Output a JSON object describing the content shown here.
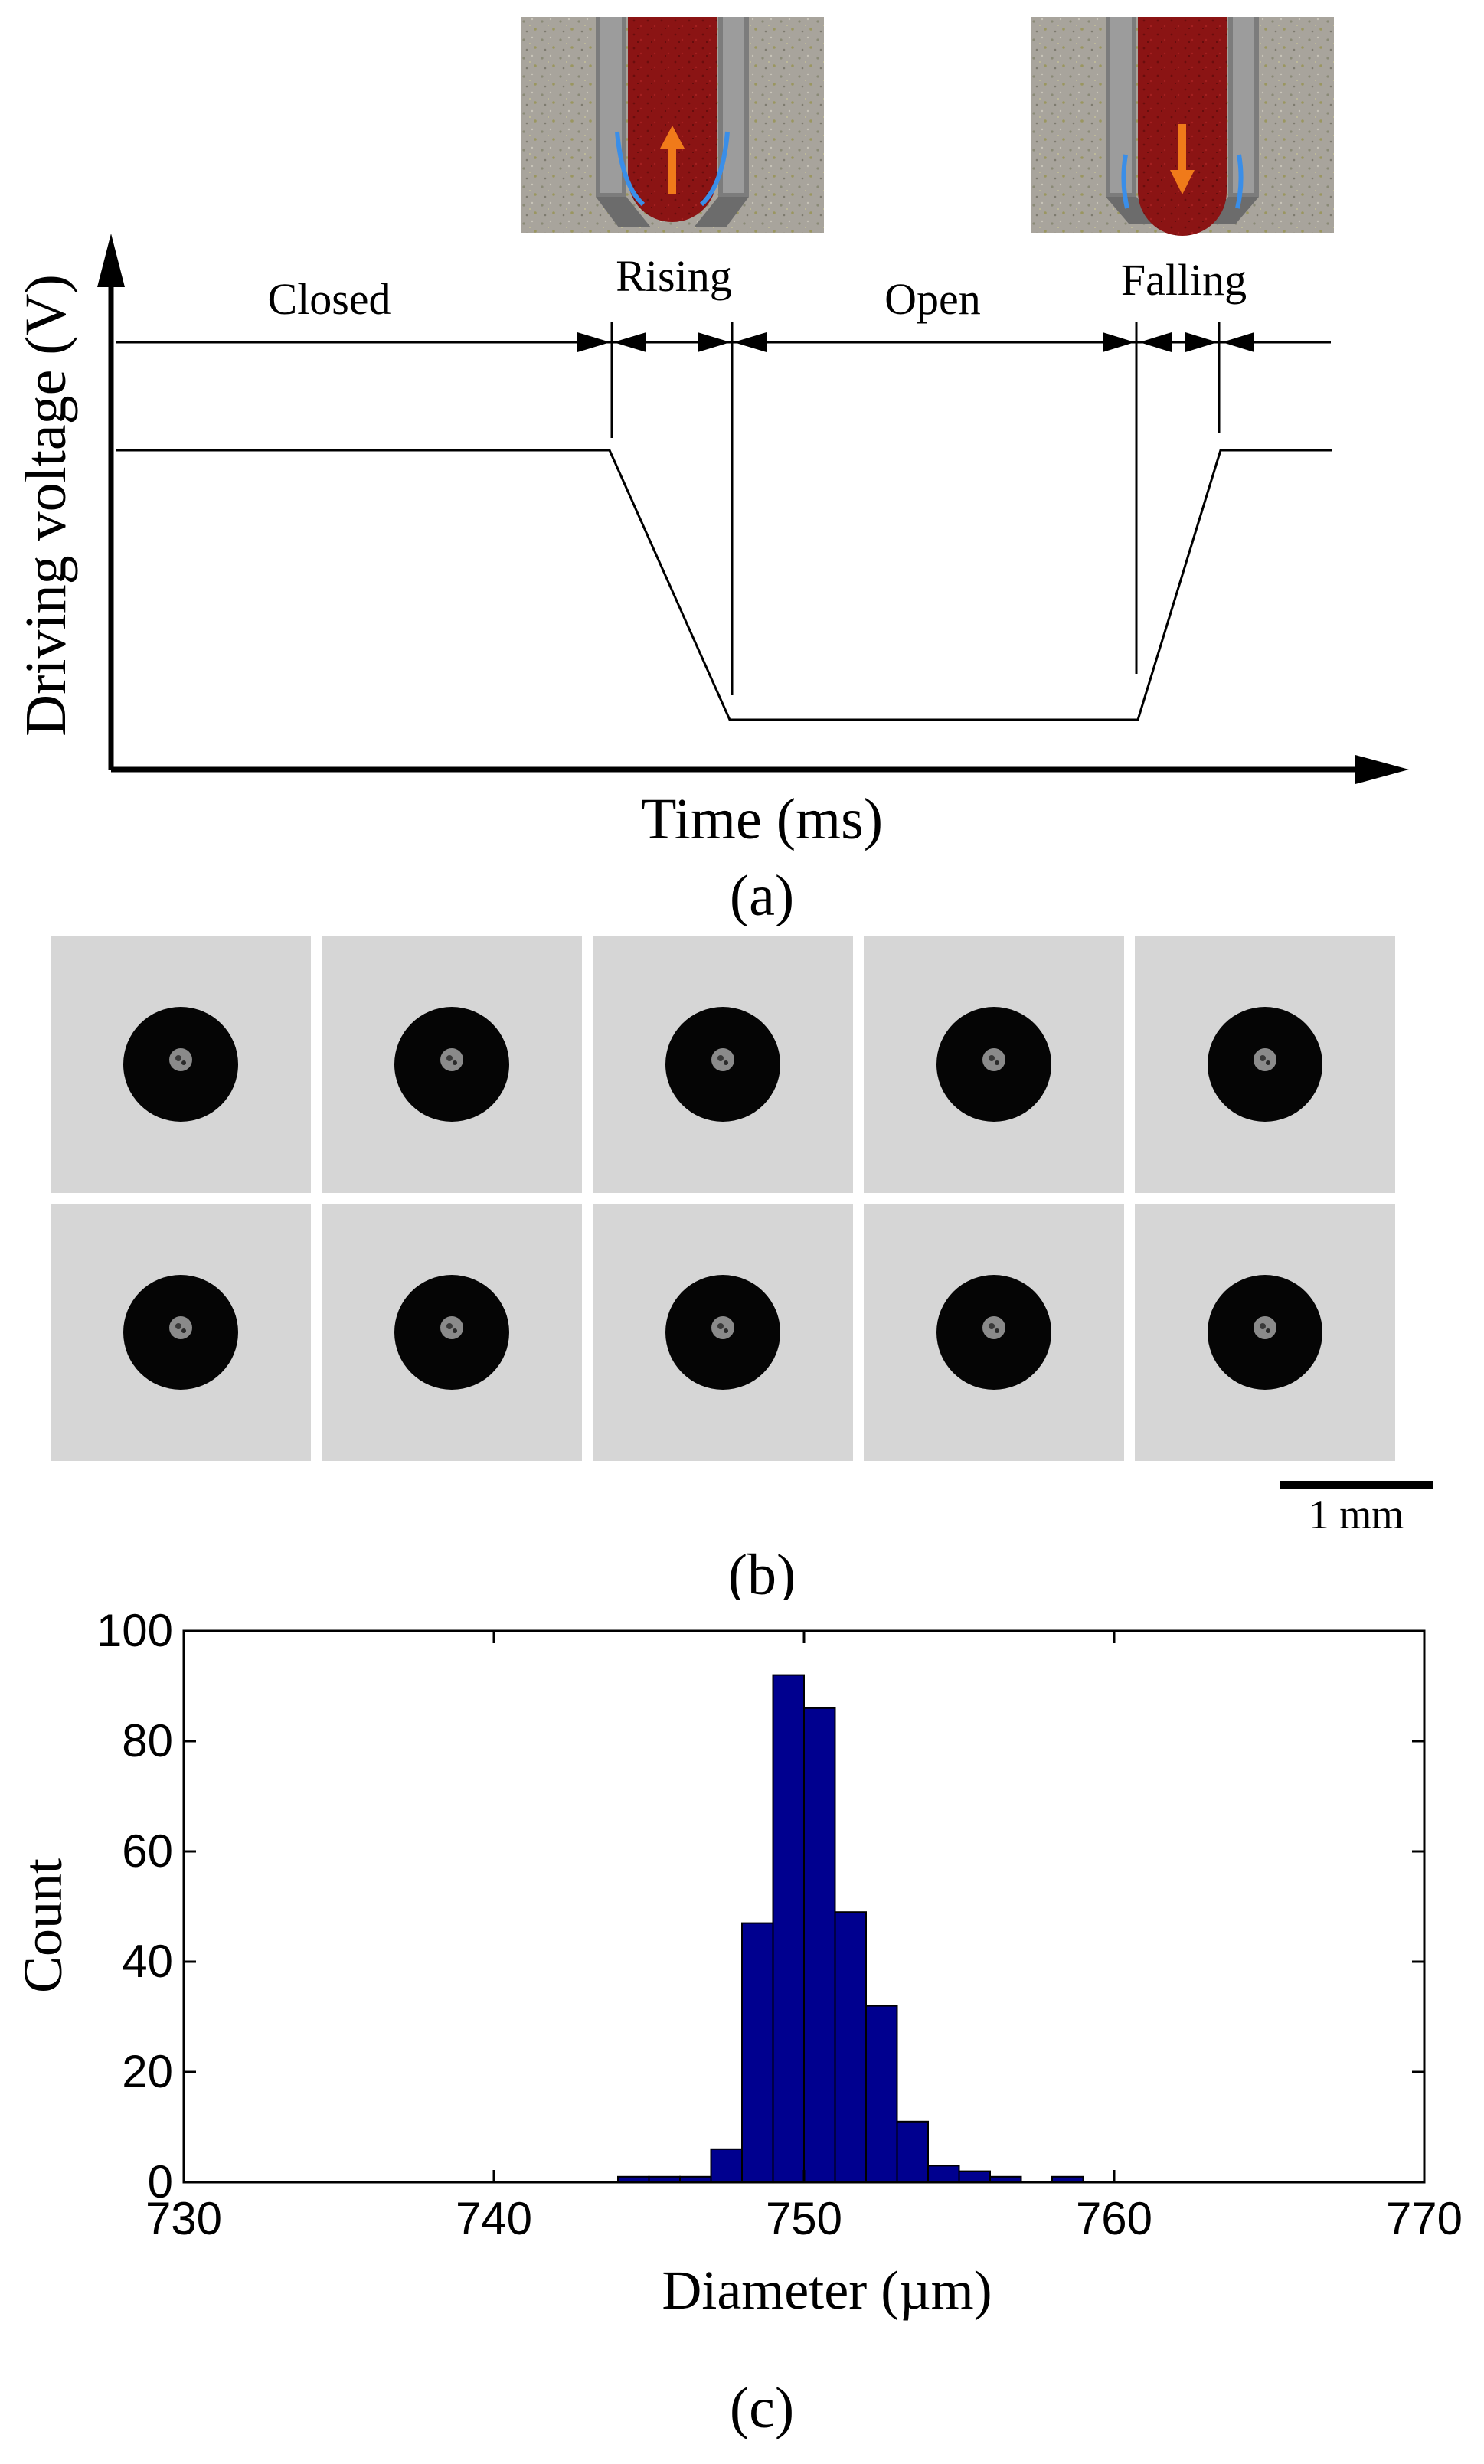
{
  "panel_a": {
    "ylabel": "Driving voltage (V)",
    "xlabel": "Time (ms)",
    "caption": "(a)",
    "phases": [
      "Closed",
      "Rising",
      "Open",
      "Falling"
    ],
    "insets": [
      {
        "name": "rising-inset",
        "arrow": "up"
      },
      {
        "name": "falling-inset",
        "arrow": "down"
      }
    ],
    "colors": {
      "droplet": "#8b1414",
      "arrow": "#f07a1a",
      "flow": "#3a8ee8",
      "background": "#a8a49c"
    }
  },
  "panel_b": {
    "caption": "(b)",
    "rows": 2,
    "columns": 5,
    "scale_bar_label": "1 mm",
    "colors": {
      "background": "#d6d6d6",
      "droplet": "#050505"
    }
  },
  "chart_data": {
    "type": "bar",
    "title": "",
    "xlabel": "Diameter (µm)",
    "ylabel": "Count",
    "caption": "(c)",
    "xlim": [
      730,
      770
    ],
    "ylim": [
      0,
      100
    ],
    "xticks": [
      730,
      740,
      750,
      760,
      770
    ],
    "yticks": [
      0,
      20,
      40,
      60,
      80,
      100
    ],
    "bin_width": 1,
    "bins": [
      {
        "x0": 744,
        "x1": 745,
        "count": 1
      },
      {
        "x0": 745,
        "x1": 746,
        "count": 1
      },
      {
        "x0": 746,
        "x1": 747,
        "count": 1
      },
      {
        "x0": 747,
        "x1": 748,
        "count": 6
      },
      {
        "x0": 748,
        "x1": 749,
        "count": 47
      },
      {
        "x0": 749,
        "x1": 750,
        "count": 92
      },
      {
        "x0": 750,
        "x1": 751,
        "count": 86
      },
      {
        "x0": 751,
        "x1": 752,
        "count": 49
      },
      {
        "x0": 752,
        "x1": 753,
        "count": 32
      },
      {
        "x0": 753,
        "x1": 754,
        "count": 11
      },
      {
        "x0": 754,
        "x1": 755,
        "count": 3
      },
      {
        "x0": 755,
        "x1": 756,
        "count": 2
      },
      {
        "x0": 756,
        "x1": 757,
        "count": 1
      },
      {
        "x0": 758,
        "x1": 759,
        "count": 1
      }
    ],
    "bar_color": "#00008f",
    "grid": false
  }
}
